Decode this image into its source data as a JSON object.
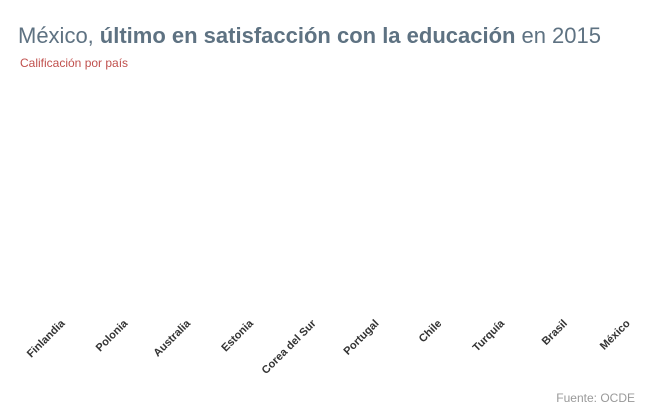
{
  "chart_data": {
    "type": "bar",
    "title_parts": [
      "México,",
      "último en satisfacción con la educación",
      "en 2015"
    ],
    "subtitle": "Calificación por país",
    "categories": [
      "Finlandia",
      "Polonia",
      "Australia",
      "Estonia",
      "Corea del Sur",
      "Portugal",
      "Chile",
      "Turquía",
      "Brasil",
      "México"
    ],
    "source": "Fuente: OCDE"
  }
}
